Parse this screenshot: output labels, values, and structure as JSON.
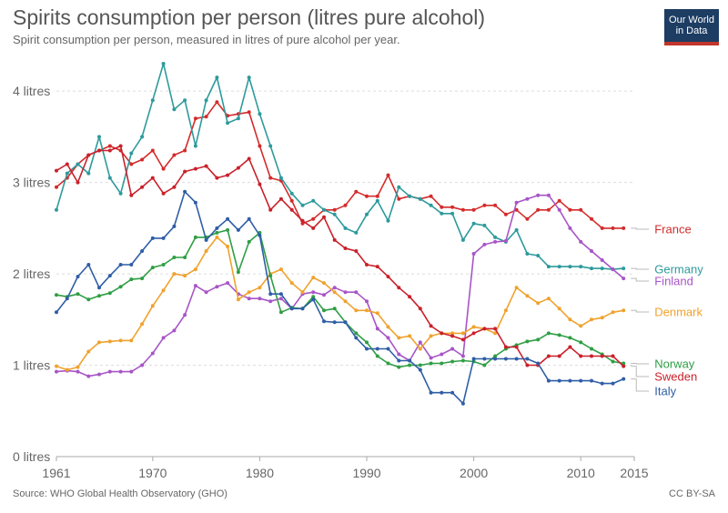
{
  "header": {
    "title": "Spirits consumption per person (litres pure alcohol)",
    "subtitle": "Spirit consumption per person, measured in litres of pure alcohol per year.",
    "logo_line1": "Our World",
    "logo_line2": "in Data"
  },
  "footer": {
    "source": "Source: WHO Global Health Observatory (GHO)",
    "license": "CC BY-SA"
  },
  "chart_data": {
    "type": "line",
    "title": "Spirits consumption per person (litres pure alcohol)",
    "subtitle": "Spirit consumption per person, measured in litres of pure alcohol per year.",
    "xlim": [
      1961,
      2015
    ],
    "ylim": [
      0,
      4.4
    ],
    "x_ticks": [
      {
        "value": 1961,
        "label": "1961"
      },
      {
        "value": 1970,
        "label": "1970"
      },
      {
        "value": 1980,
        "label": "1980"
      },
      {
        "value": 1990,
        "label": "1990"
      },
      {
        "value": 2000,
        "label": "2000"
      },
      {
        "value": 2010,
        "label": "2010"
      },
      {
        "value": 2015,
        "label": "2015"
      }
    ],
    "y_ticks": [
      {
        "value": 0,
        "label": "0 litres"
      },
      {
        "value": 1,
        "label": "1 litres"
      },
      {
        "value": 2,
        "label": "2 litres"
      },
      {
        "value": 3,
        "label": "3 litres"
      },
      {
        "value": 4,
        "label": "4 litres"
      }
    ],
    "grid": "horizontal dotted",
    "legend": "right, labels at line ends",
    "x": [
      1961,
      1962,
      1963,
      1964,
      1965,
      1966,
      1967,
      1968,
      1969,
      1970,
      1971,
      1972,
      1973,
      1974,
      1975,
      1976,
      1977,
      1978,
      1979,
      1980,
      1981,
      1982,
      1983,
      1984,
      1985,
      1986,
      1987,
      1988,
      1989,
      1990,
      1991,
      1992,
      1993,
      1994,
      1995,
      1996,
      1997,
      1998,
      1999,
      2000,
      2001,
      2002,
      2003,
      2004,
      2005,
      2006,
      2007,
      2008,
      2009,
      2010,
      2011,
      2012,
      2013,
      2014
    ],
    "series": [
      {
        "name": "France",
        "color": "#d42b2b",
        "values": [
          2.95,
          3.05,
          3.2,
          3.3,
          3.35,
          3.4,
          3.35,
          3.2,
          3.25,
          3.35,
          3.15,
          3.3,
          3.35,
          3.7,
          3.72,
          3.88,
          3.73,
          3.75,
          3.77,
          3.4,
          3.05,
          3.02,
          2.8,
          2.55,
          2.6,
          2.7,
          2.7,
          2.75,
          2.9,
          2.85,
          2.85,
          3.08,
          2.82,
          2.85,
          2.82,
          2.85,
          2.73,
          2.73,
          2.7,
          2.7,
          2.75,
          2.75,
          2.65,
          2.7,
          2.6,
          2.7,
          2.7,
          2.8,
          2.7,
          2.7,
          2.6,
          2.5,
          2.5,
          2.5
        ]
      },
      {
        "name": "Germany",
        "color": "#2d9a9c",
        "values": [
          2.7,
          3.1,
          3.2,
          3.1,
          3.5,
          3.05,
          2.88,
          3.32,
          3.5,
          3.9,
          4.3,
          3.8,
          3.9,
          3.4,
          3.9,
          4.15,
          3.65,
          3.7,
          4.15,
          3.75,
          3.4,
          3.05,
          2.88,
          2.75,
          2.8,
          2.7,
          2.65,
          2.5,
          2.45,
          2.65,
          2.8,
          2.58,
          2.95,
          2.85,
          2.82,
          2.75,
          2.66,
          2.66,
          2.37,
          2.55,
          2.53,
          2.4,
          2.35,
          2.48,
          2.22,
          2.2,
          2.08,
          2.08,
          2.08,
          2.08,
          2.06,
          2.06,
          2.05,
          2.06
        ]
      },
      {
        "name": "Finland",
        "color": "#a855c7",
        "values": [
          0.93,
          0.94,
          0.93,
          0.88,
          0.9,
          0.93,
          0.93,
          0.93,
          1.0,
          1.13,
          1.3,
          1.38,
          1.55,
          1.87,
          1.8,
          1.86,
          1.9,
          1.78,
          1.73,
          1.73,
          1.7,
          1.73,
          1.62,
          1.78,
          1.8,
          1.77,
          1.85,
          1.8,
          1.8,
          1.7,
          1.4,
          1.3,
          1.12,
          1.05,
          1.25,
          1.08,
          1.12,
          1.18,
          1.1,
          2.22,
          2.32,
          2.35,
          2.36,
          2.78,
          2.82,
          2.86,
          2.86,
          2.7,
          2.5,
          2.35,
          2.25,
          2.15,
          2.05,
          1.95
        ]
      },
      {
        "name": "Denmark",
        "color": "#f0a22e",
        "values": [
          0.99,
          0.95,
          0.98,
          1.15,
          1.25,
          1.26,
          1.27,
          1.27,
          1.45,
          1.65,
          1.82,
          2.0,
          1.98,
          2.05,
          2.25,
          2.4,
          2.3,
          1.72,
          1.8,
          1.85,
          2.0,
          2.05,
          1.9,
          1.8,
          1.96,
          1.9,
          1.8,
          1.7,
          1.6,
          1.6,
          1.57,
          1.42,
          1.3,
          1.32,
          1.18,
          1.32,
          1.35,
          1.35,
          1.35,
          1.42,
          1.4,
          1.35,
          1.6,
          1.85,
          1.76,
          1.68,
          1.73,
          1.62,
          1.5,
          1.43,
          1.5,
          1.52,
          1.58,
          1.6
        ]
      },
      {
        "name": "Norway",
        "color": "#2f9e44",
        "values": [
          1.77,
          1.75,
          1.78,
          1.72,
          1.76,
          1.79,
          1.86,
          1.94,
          1.95,
          2.07,
          2.1,
          2.18,
          2.18,
          2.4,
          2.4,
          2.45,
          2.48,
          2.02,
          2.35,
          2.45,
          1.98,
          1.58,
          1.63,
          1.62,
          1.75,
          1.6,
          1.62,
          1.47,
          1.35,
          1.25,
          1.1,
          1.02,
          0.98,
          1.0,
          1.0,
          1.02,
          1.02,
          1.04,
          1.05,
          1.04,
          1.0,
          1.1,
          1.18,
          1.22,
          1.26,
          1.28,
          1.35,
          1.33,
          1.3,
          1.25,
          1.18,
          1.12,
          1.04,
          1.02
        ]
      },
      {
        "name": "Sweden",
        "color": "#c9212b",
        "values": [
          3.13,
          3.2,
          3.0,
          3.3,
          3.35,
          3.35,
          3.4,
          2.86,
          2.95,
          3.05,
          2.88,
          2.95,
          3.12,
          3.15,
          3.18,
          3.05,
          3.08,
          3.16,
          3.26,
          2.98,
          2.7,
          2.82,
          2.7,
          2.58,
          2.5,
          2.62,
          2.37,
          2.28,
          2.25,
          2.1,
          2.08,
          1.97,
          1.85,
          1.75,
          1.62,
          1.43,
          1.35,
          1.32,
          1.28,
          1.35,
          1.4,
          1.4,
          1.2,
          1.2,
          1.0,
          1.0,
          1.1,
          1.1,
          1.2,
          1.1,
          1.1,
          1.1,
          1.1,
          0.99
        ]
      },
      {
        "name": "Italy",
        "color": "#2f5ea6",
        "values": [
          1.58,
          1.73,
          1.97,
          2.1,
          1.85,
          1.98,
          2.1,
          2.1,
          2.25,
          2.39,
          2.39,
          2.52,
          2.9,
          2.78,
          2.37,
          2.5,
          2.6,
          2.48,
          2.6,
          2.42,
          1.78,
          1.78,
          1.62,
          1.62,
          1.72,
          1.48,
          1.47,
          1.47,
          1.3,
          1.18,
          1.18,
          1.18,
          1.05,
          1.05,
          0.95,
          0.7,
          0.7,
          0.7,
          0.58,
          1.07,
          1.07,
          1.07,
          1.07,
          1.07,
          1.07,
          1.02,
          0.83,
          0.83,
          0.83,
          0.83,
          0.83,
          0.8,
          0.8,
          0.85
        ]
      }
    ]
  }
}
